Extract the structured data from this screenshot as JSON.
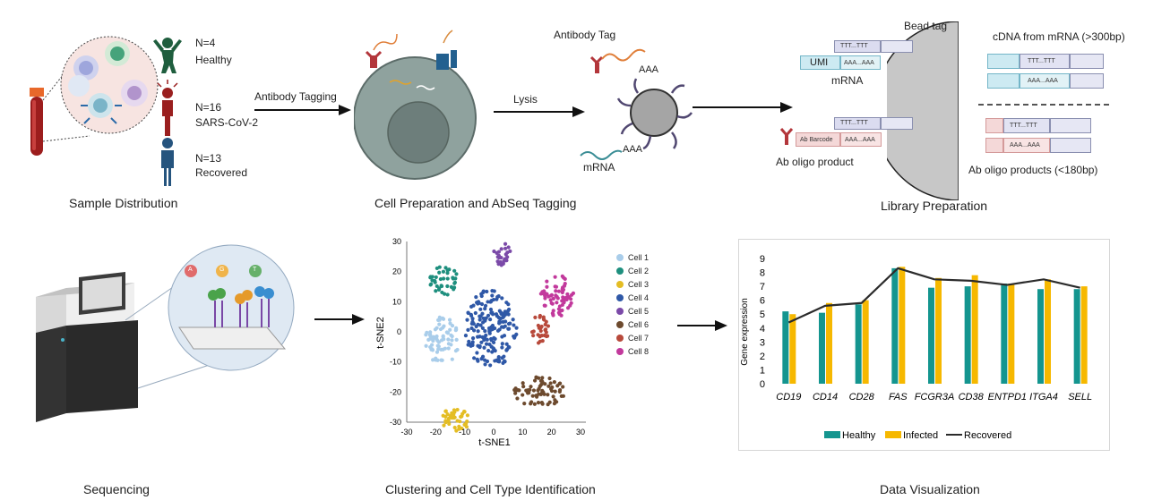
{
  "sample": {
    "healthy_n": "N=4",
    "healthy_label": "Healthy",
    "covid_n": "N=16",
    "covid_label": "SARS-CoV-2",
    "recovered_n": "N=13",
    "recovered_label": "Recovered",
    "caption": "Sample Distribution"
  },
  "arrows": {
    "antibody_tagging": "Antibody Tagging",
    "lysis": "Lysis"
  },
  "cell_prep": {
    "caption": "Cell Preparation and AbSeq Tagging"
  },
  "lysis_panel": {
    "antibody_tag": "Antibody Tag",
    "aaa_top": "AAA",
    "aaa_bottom": "AAA",
    "mrna": "mRNA"
  },
  "library": {
    "bead_tag": "Bead tag",
    "umi": "UMI",
    "mrna_label": "mRNA",
    "ttt_top": "TTT...TTT",
    "aaa_top": "AAA...AAA",
    "ttt_bottom": "TTT...TTT",
    "ab_barcode": "Ab Barcode",
    "aaa_ab": "AAA...AAA",
    "ab_oligo_product": "Ab oligo product",
    "cdna_title": "cDNA from mRNA (>300bp)",
    "cdna_ttt": "TTT...TTT",
    "cdna_aaa": "AAA...AAA",
    "ab_ttt": "TTT...TTT",
    "ab_aaa": "AAA...AAA",
    "ab_products_title": "Ab oligo products (<180bp)",
    "caption": "Library Preparation"
  },
  "sequencing": {
    "caption": "Sequencing",
    "bases": [
      "A",
      "G",
      "T"
    ]
  },
  "clustering": {
    "caption": "Clustering and Cell Type Identification",
    "xlabel": "t-SNE1",
    "ylabel": "t-SNE2",
    "xticks": [
      "-30",
      "-20",
      "-10",
      "0",
      "10",
      "20",
      "30"
    ],
    "yticks": [
      "30",
      "20",
      "10",
      "0",
      "-10",
      "-20",
      "-30"
    ],
    "legend": [
      {
        "name": "Cell 1",
        "color": "#a9cdea"
      },
      {
        "name": "Cell 2",
        "color": "#1e8f7e"
      },
      {
        "name": "Cell 3",
        "color": "#e4bd24"
      },
      {
        "name": "Cell 4",
        "color": "#2f58a7"
      },
      {
        "name": "Cell 5",
        "color": "#7b4aa8"
      },
      {
        "name": "Cell 6",
        "color": "#6d4a2e"
      },
      {
        "name": "Cell 7",
        "color": "#b8493b"
      },
      {
        "name": "Cell 8",
        "color": "#c2399c"
      }
    ]
  },
  "visualization": {
    "caption": "Data Visualization"
  },
  "chart_data": {
    "type": "bar",
    "categories": [
      "CD19",
      "CD14",
      "CD28",
      "FAS",
      "FCGR3A",
      "CD38",
      "ENTPD1",
      "ITGA4",
      "SELL"
    ],
    "series": [
      {
        "name": "Healthy",
        "type": "bar",
        "color": "#14958f",
        "values": [
          5.2,
          5.1,
          5.7,
          8.3,
          6.9,
          7.0,
          7.2,
          6.8,
          6.8
        ]
      },
      {
        "name": "Infected",
        "type": "bar",
        "color": "#f6b800",
        "values": [
          5.0,
          5.8,
          6.0,
          8.4,
          7.6,
          7.8,
          7.2,
          7.5,
          7.0
        ]
      },
      {
        "name": "Recovered",
        "type": "line",
        "color": "#2b2b2b",
        "values": [
          4.4,
          5.6,
          5.8,
          8.3,
          7.5,
          7.4,
          7.1,
          7.5,
          6.9
        ]
      }
    ],
    "ylabel": "Gene expression",
    "xlabel": "",
    "yticks": [
      "0",
      "1",
      "2",
      "3",
      "4",
      "5",
      "6",
      "7",
      "8",
      "9"
    ],
    "ylim": [
      0,
      9
    ],
    "grid": false,
    "legend": "bottom"
  }
}
